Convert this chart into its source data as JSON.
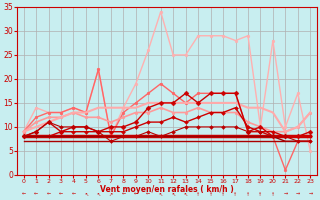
{
  "bg_color": "#c8eef0",
  "grid_color": "#b0b0b0",
  "xlabel": "Vent moyen/en rafales ( km/h )",
  "xlabel_color": "#cc0000",
  "tick_color": "#cc0000",
  "xlim": [
    -0.5,
    23.5
  ],
  "ylim": [
    0,
    35
  ],
  "yticks": [
    0,
    5,
    10,
    15,
    20,
    25,
    30,
    35
  ],
  "xticks": [
    0,
    1,
    2,
    3,
    4,
    5,
    6,
    7,
    8,
    9,
    10,
    11,
    12,
    13,
    14,
    15,
    16,
    17,
    18,
    19,
    20,
    21,
    22,
    23
  ],
  "lines": [
    {
      "comment": "lightest pink - rafales line, highest peaks",
      "x": [
        0,
        1,
        2,
        3,
        4,
        5,
        6,
        7,
        8,
        9,
        10,
        11,
        12,
        13,
        14,
        15,
        16,
        17,
        18,
        19,
        20,
        21,
        22,
        23
      ],
      "y": [
        9,
        14,
        13,
        13,
        14,
        13,
        22,
        8,
        14,
        19,
        26,
        34,
        25,
        25,
        29,
        29,
        29,
        28,
        29,
        10,
        28,
        10,
        17,
        5
      ],
      "color": "#ffb0b0",
      "lw": 1.0,
      "marker": "o",
      "ms": 2.0
    },
    {
      "comment": "medium pink - second highest curve",
      "x": [
        0,
        1,
        2,
        3,
        4,
        5,
        6,
        7,
        8,
        9,
        10,
        11,
        12,
        13,
        14,
        15,
        16,
        17,
        18,
        19,
        20,
        21,
        22,
        23
      ],
      "y": [
        9,
        12,
        13,
        13,
        14,
        13,
        22,
        8,
        13,
        15,
        17,
        19,
        17,
        15,
        17,
        17,
        17,
        17,
        9,
        9,
        8,
        1,
        7,
        7
      ],
      "color": "#ff6666",
      "lw": 1.0,
      "marker": "o",
      "ms": 2.0
    },
    {
      "comment": "medium pink flat-ish rising line",
      "x": [
        0,
        1,
        2,
        3,
        4,
        5,
        6,
        7,
        8,
        9,
        10,
        11,
        12,
        13,
        14,
        15,
        16,
        17,
        18,
        19,
        20,
        21,
        22,
        23
      ],
      "y": [
        9,
        11,
        12,
        12,
        13,
        12,
        12,
        11,
        12,
        13,
        13,
        14,
        13,
        13,
        14,
        13,
        13,
        13,
        11,
        10,
        9,
        9,
        10,
        13
      ],
      "color": "#ff9999",
      "lw": 1.2,
      "marker": "o",
      "ms": 2.0
    },
    {
      "comment": "medium salmon - gently rising plateau",
      "x": [
        0,
        1,
        2,
        3,
        4,
        5,
        6,
        7,
        8,
        9,
        10,
        11,
        12,
        13,
        14,
        15,
        16,
        17,
        18,
        19,
        20,
        21,
        22,
        23
      ],
      "y": [
        9,
        10,
        11,
        12,
        13,
        13,
        14,
        14,
        14,
        14,
        15,
        15,
        15,
        15,
        15,
        15,
        15,
        15,
        14,
        14,
        13,
        9,
        10,
        13
      ],
      "color": "#ffaaaa",
      "lw": 1.5,
      "marker": null,
      "ms": 0
    },
    {
      "comment": "dark red jagged with markers",
      "x": [
        0,
        1,
        2,
        3,
        4,
        5,
        6,
        7,
        8,
        9,
        10,
        11,
        12,
        13,
        14,
        15,
        16,
        17,
        18,
        19,
        20,
        21,
        22,
        23
      ],
      "y": [
        8,
        9,
        11,
        9,
        10,
        10,
        9,
        10,
        10,
        11,
        14,
        15,
        15,
        17,
        15,
        17,
        17,
        17,
        9,
        10,
        8,
        8,
        8,
        9
      ],
      "color": "#cc0000",
      "lw": 1.0,
      "marker": "D",
      "ms": 2.5
    },
    {
      "comment": "dark red low line with diamonds",
      "x": [
        0,
        1,
        2,
        3,
        4,
        5,
        6,
        7,
        8,
        9,
        10,
        11,
        12,
        13,
        14,
        15,
        16,
        17,
        18,
        19,
        20,
        21,
        22,
        23
      ],
      "y": [
        8,
        8,
        8,
        9,
        9,
        9,
        9,
        9,
        9,
        10,
        11,
        11,
        12,
        11,
        12,
        13,
        13,
        14,
        10,
        9,
        9,
        8,
        8,
        8
      ],
      "color": "#cc0000",
      "lw": 1.0,
      "marker": "D",
      "ms": 2.0
    },
    {
      "comment": "dark red flat bottom line (thick)",
      "x": [
        0,
        1,
        2,
        3,
        4,
        5,
        6,
        7,
        8,
        9,
        10,
        11,
        12,
        13,
        14,
        15,
        16,
        17,
        18,
        19,
        20,
        21,
        22,
        23
      ],
      "y": [
        8,
        8,
        8,
        8,
        8,
        8,
        8,
        8,
        8,
        8,
        8,
        8,
        8,
        8,
        8,
        8,
        8,
        8,
        8,
        8,
        8,
        8,
        8,
        8
      ],
      "color": "#cc0000",
      "lw": 2.5,
      "marker": null,
      "ms": 0
    },
    {
      "comment": "dark red dashed or thin flat at 7-8",
      "x": [
        0,
        1,
        2,
        3,
        4,
        5,
        6,
        7,
        8,
        9,
        10,
        11,
        12,
        13,
        14,
        15,
        16,
        17,
        18,
        19,
        20,
        21,
        22,
        23
      ],
      "y": [
        8,
        8,
        8,
        8,
        8,
        8,
        8,
        8,
        8,
        8,
        8,
        8,
        8,
        8,
        8,
        8,
        8,
        8,
        8,
        8,
        8,
        7,
        7,
        7
      ],
      "color": "#990000",
      "lw": 1.0,
      "marker": null,
      "ms": 0
    },
    {
      "comment": "darkest red very flat near bottom ~7",
      "x": [
        0,
        1,
        2,
        3,
        4,
        5,
        6,
        7,
        8,
        9,
        10,
        11,
        12,
        13,
        14,
        15,
        16,
        17,
        18,
        19,
        20,
        21,
        22,
        23
      ],
      "y": [
        7,
        7,
        7,
        7,
        7,
        7,
        7,
        7,
        7,
        7,
        7,
        7,
        7,
        7,
        7,
        7,
        7,
        7,
        7,
        7,
        7,
        7,
        7,
        7
      ],
      "color": "#aa0000",
      "lw": 1.0,
      "marker": null,
      "ms": 0
    },
    {
      "comment": "dark red triangle shape low 7-9-7",
      "x": [
        0,
        1,
        2,
        3,
        4,
        5,
        6,
        7,
        8,
        9,
        10,
        11,
        12,
        13,
        14,
        15,
        16,
        17,
        18,
        19,
        20,
        21,
        22,
        23
      ],
      "y": [
        8,
        9,
        11,
        10,
        10,
        10,
        9,
        7,
        8,
        8,
        9,
        8,
        9,
        10,
        10,
        10,
        10,
        10,
        9,
        9,
        8,
        8,
        7,
        7
      ],
      "color": "#bb0000",
      "lw": 0.8,
      "marker": "D",
      "ms": 2.0
    }
  ],
  "wind_arrows": [
    "←",
    "←",
    "←",
    "←",
    "←",
    "↖",
    "↖",
    "↗",
    "←",
    "←",
    "←",
    "↖",
    "↖",
    "↖",
    "↑",
    "↑",
    "↑",
    "↑",
    "↑",
    "↑",
    "↑",
    "→",
    "→",
    "→"
  ]
}
